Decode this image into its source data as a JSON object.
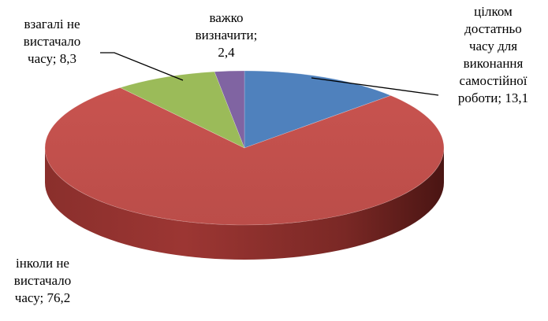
{
  "chart_data": {
    "type": "pie",
    "style": "3d",
    "title": "",
    "slices": [
      {
        "label": "цілком достатньо часу для виконання самостійної роботи",
        "value": 13.1,
        "color": "#4F81BD",
        "label_lines": [
          "цілком",
          "достатньо",
          "часу для",
          "виконання",
          "самостійної",
          "роботи; 13,1"
        ]
      },
      {
        "label": "інколи не вистачало часу",
        "value": 76.2,
        "color": "#C0504D",
        "label_lines": [
          "інколи не",
          "вистачало",
          "часу; 76,2"
        ]
      },
      {
        "label": "взагалі не вистачало часу",
        "value": 8.3,
        "color": "#9BBB59",
        "label_lines": [
          "взагалі не",
          "вистачало",
          "часу; 8,3"
        ]
      },
      {
        "label": "важко визначити",
        "value": 2.4,
        "color": "#8064A2",
        "label_lines": [
          "важко",
          "визначити;",
          "2,4"
        ]
      }
    ],
    "legend": "none"
  }
}
